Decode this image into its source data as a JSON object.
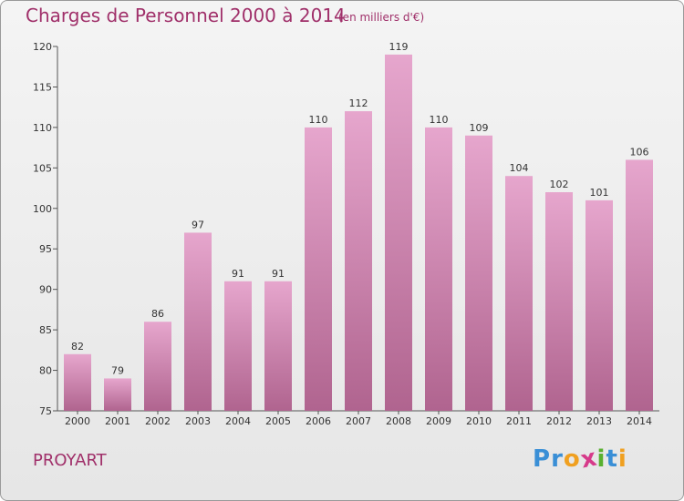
{
  "chart_data": {
    "type": "bar",
    "title": "Charges de Personnel 2000 à 2014",
    "subtitle": "(en milliers d'€)",
    "categories": [
      "2000",
      "2001",
      "2002",
      "2003",
      "2004",
      "2005",
      "2006",
      "2007",
      "2008",
      "2009",
      "2010",
      "2011",
      "2012",
      "2013",
      "2014"
    ],
    "values": [
      82,
      79,
      86,
      97,
      91,
      91,
      110,
      112,
      119,
      110,
      109,
      104,
      102,
      101,
      106
    ],
    "ylim": [
      75,
      120
    ],
    "yticks": [
      75,
      80,
      85,
      90,
      95,
      100,
      105,
      110,
      115,
      120
    ],
    "grid": false,
    "bar_color_top": "#e6a6cd",
    "bar_color_bottom": "#b0648f"
  },
  "footer": {
    "commune": "PROYART",
    "logo_letters": [
      {
        "ch": "P",
        "color": "#3a8fd6"
      },
      {
        "ch": "r",
        "color": "#3a8fd6"
      },
      {
        "ch": "o",
        "color": "#f0a020"
      },
      {
        "ch": "x",
        "color": "#d63a8a"
      },
      {
        "ch": "i",
        "color": "#58b030"
      },
      {
        "ch": "t",
        "color": "#3a8fd6"
      },
      {
        "ch": "i",
        "color": "#f0a020"
      }
    ]
  }
}
